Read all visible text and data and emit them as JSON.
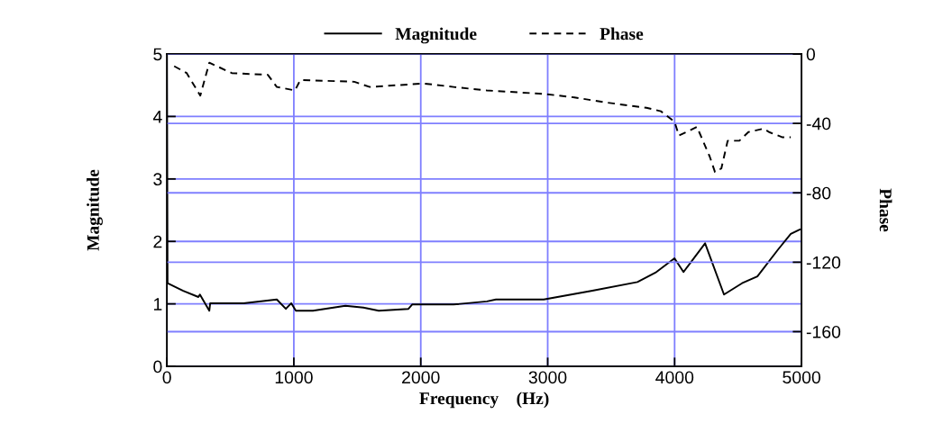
{
  "chart_data": {
    "type": "line",
    "xlabel": "Frequency    (Hz)",
    "ylabel": "Magnitude",
    "y2label": "Phase",
    "xlim": [
      0,
      5000
    ],
    "xticks": [
      0,
      1000,
      2000,
      3000,
      4000,
      5000
    ],
    "ylim": [
      0,
      5
    ],
    "yticks": [
      0,
      1,
      2,
      3,
      4,
      5
    ],
    "y2lim": [
      -180,
      0
    ],
    "y2ticks": [
      -160,
      -120,
      -80,
      -40,
      0
    ],
    "grid": true,
    "legend": "top",
    "marker": "none",
    "series": [
      {
        "name": "Magnitude",
        "color": "#000000",
        "line_style": "solid",
        "x": [
          0,
          5,
          128,
          248,
          260,
          334,
          341,
          604,
          866,
          937,
          980,
          1016,
          1150,
          1406,
          1548,
          1669,
          1903,
          1932,
          2258,
          2521,
          2592,
          2969,
          3352,
          3707,
          3849,
          3999,
          4070,
          4240,
          4389,
          4531,
          4652,
          4815,
          4915,
          4986
        ],
        "values": [
          5,
          1.33,
          1.21,
          1.11,
          1.15,
          0.89,
          1.01,
          1.01,
          1.07,
          0.92,
          1.01,
          0.89,
          0.89,
          0.97,
          0.94,
          0.89,
          0.92,
          0.99,
          0.99,
          1.04,
          1.07,
          1.07,
          1.21,
          1.35,
          1.5,
          1.73,
          1.51,
          1.97,
          1.15,
          1.33,
          1.44,
          1.87,
          2.12,
          2.19
        ]
      },
      {
        "name": "Phase",
        "color": "#000000",
        "line_style": "dashed",
        "axis": "y2",
        "x": [
          57,
          156,
          263,
          334,
          511,
          795,
          866,
          1009,
          1051,
          1477,
          1598,
          2024,
          2258,
          2521,
          2969,
          3210,
          3466,
          3778,
          3892,
          3999,
          4034,
          4176,
          4276,
          4318,
          4368,
          4418,
          4510,
          4581,
          4702,
          4744,
          4851,
          4915
        ],
        "values": [
          -7,
          -11,
          -24,
          -5,
          -11,
          -12,
          -19,
          -21,
          -15,
          -16,
          -19,
          -17,
          -19,
          -21,
          -23,
          -25,
          -28,
          -31,
          -33,
          -39,
          -47,
          -42,
          -59,
          -68,
          -66,
          -50,
          -50,
          -45,
          -43,
          -45,
          -48,
          -48
        ]
      }
    ]
  }
}
